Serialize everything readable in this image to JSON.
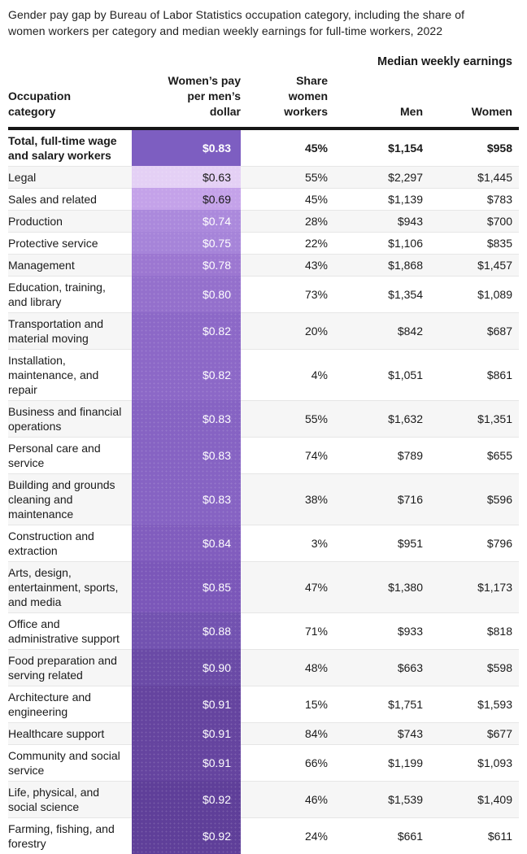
{
  "title": "Gender pay gap by Bureau of Labor Statistics occupation category, including the share of women workers per category and median weekly earnings for full-time workers, 2022",
  "chart_data": {
    "type": "table",
    "title": "Gender pay gap by Bureau of Labor Statistics occupation category, including the share of women workers per category and median weekly earnings for full-time workers, 2022",
    "group_header": "Median weekly earnings",
    "columns": [
      "Occupation category",
      "Women’s pay per men’s dollar",
      "Share women workers",
      "Men",
      "Women"
    ],
    "heatmap_legend": "Purple shading of the pay-ratio column darkens as women's pay per men's dollar increases, from $0.63 (lightest) to $0.92 (darkest)",
    "rows": [
      {
        "category": "Total, full-time wage and salary workers",
        "pay_label": "$0.83",
        "pay_value": 0.83,
        "share_label": "45%",
        "share_value": 45,
        "men_label": "$1,154",
        "men_value": 1154,
        "women_label": "$958",
        "women_value": 958,
        "cell_bg": "#7D5EC1",
        "cell_text": "#FFFFFF",
        "bold": true
      },
      {
        "category": "Legal",
        "pay_label": "$0.63",
        "pay_value": 0.63,
        "share_label": "55%",
        "share_value": 55,
        "men_label": "$2,297",
        "men_value": 2297,
        "women_label": "$1,445",
        "women_value": 1445,
        "cell_bg": "#E4D0F5",
        "cell_text": "#1A1A1A",
        "bold": false
      },
      {
        "category": "Sales and related",
        "pay_label": "$0.69",
        "pay_value": 0.69,
        "share_label": "45%",
        "share_value": 45,
        "men_label": "$1,139",
        "men_value": 1139,
        "women_label": "$783",
        "women_value": 783,
        "cell_bg": "#C4A2E9",
        "cell_text": "#1A1A1A",
        "bold": false
      },
      {
        "category": "Production",
        "pay_label": "$0.74",
        "pay_value": 0.74,
        "share_label": "28%",
        "share_value": 28,
        "men_label": "$943",
        "men_value": 943,
        "women_label": "$700",
        "women_value": 700,
        "cell_bg": "#AB89DC",
        "cell_text": "#FFFFFF",
        "bold": false
      },
      {
        "category": "Protective service",
        "pay_label": "$0.75",
        "pay_value": 0.75,
        "share_label": "22%",
        "share_value": 22,
        "men_label": "$1,106",
        "men_value": 1106,
        "women_label": "$835",
        "women_value": 835,
        "cell_bg": "#A684D9",
        "cell_text": "#FFFFFF",
        "bold": false
      },
      {
        "category": "Management",
        "pay_label": "$0.78",
        "pay_value": 0.78,
        "share_label": "43%",
        "share_value": 43,
        "men_label": "$1,868",
        "men_value": 1868,
        "women_label": "$1,457",
        "women_value": 1457,
        "cell_bg": "#9C77D1",
        "cell_text": "#FFFFFF",
        "bold": false
      },
      {
        "category": "Education, training, and library",
        "pay_label": "$0.80",
        "pay_value": 0.8,
        "share_label": "73%",
        "share_value": 73,
        "men_label": "$1,354",
        "men_value": 1354,
        "women_label": "$1,089",
        "women_value": 1089,
        "cell_bg": "#9470CC",
        "cell_text": "#FFFFFF",
        "bold": false
      },
      {
        "category": "Transportation and material moving",
        "pay_label": "$0.82",
        "pay_value": 0.82,
        "share_label": "20%",
        "share_value": 20,
        "men_label": "$842",
        "men_value": 842,
        "women_label": "$687",
        "women_value": 687,
        "cell_bg": "#8C68C7",
        "cell_text": "#FFFFFF",
        "bold": false
      },
      {
        "category": "Installation, maintenance, and repair",
        "pay_label": "$0.82",
        "pay_value": 0.82,
        "share_label": "4%",
        "share_value": 4,
        "men_label": "$1,051",
        "men_value": 1051,
        "women_label": "$861",
        "women_value": 861,
        "cell_bg": "#8C68C7",
        "cell_text": "#FFFFFF",
        "bold": false
      },
      {
        "category": "Business and financial operations",
        "pay_label": "$0.83",
        "pay_value": 0.83,
        "share_label": "55%",
        "share_value": 55,
        "men_label": "$1,632",
        "men_value": 1632,
        "women_label": "$1,351",
        "women_value": 1351,
        "cell_bg": "#8663C3",
        "cell_text": "#FFFFFF",
        "bold": false
      },
      {
        "category": "Personal care and service",
        "pay_label": "$0.83",
        "pay_value": 0.83,
        "share_label": "74%",
        "share_value": 74,
        "men_label": "$789",
        "men_value": 789,
        "women_label": "$655",
        "women_value": 655,
        "cell_bg": "#8663C3",
        "cell_text": "#FFFFFF",
        "bold": false
      },
      {
        "category": "Building and grounds cleaning and maintenance",
        "pay_label": "$0.83",
        "pay_value": 0.83,
        "share_label": "38%",
        "share_value": 38,
        "men_label": "$716",
        "men_value": 716,
        "women_label": "$596",
        "women_value": 596,
        "cell_bg": "#8663C3",
        "cell_text": "#FFFFFF",
        "bold": false
      },
      {
        "category": "Construction and extraction",
        "pay_label": "$0.84",
        "pay_value": 0.84,
        "share_label": "3%",
        "share_value": 3,
        "men_label": "$951",
        "men_value": 951,
        "women_label": "$796",
        "women_value": 796,
        "cell_bg": "#815DBE",
        "cell_text": "#FFFFFF",
        "bold": false
      },
      {
        "category": "Arts, design, entertainment, sports, and media",
        "pay_label": "$0.85",
        "pay_value": 0.85,
        "share_label": "47%",
        "share_value": 47,
        "men_label": "$1,380",
        "men_value": 1380,
        "women_label": "$1,173",
        "women_value": 1173,
        "cell_bg": "#7B57B9",
        "cell_text": "#FFFFFF",
        "bold": false
      },
      {
        "category": "Office and administrative support",
        "pay_label": "$0.88",
        "pay_value": 0.88,
        "share_label": "71%",
        "share_value": 71,
        "men_label": "$933",
        "men_value": 933,
        "women_label": "$818",
        "women_value": 818,
        "cell_bg": "#7252B0",
        "cell_text": "#FFFFFF",
        "bold": false
      },
      {
        "category": "Food preparation and serving related",
        "pay_label": "$0.90",
        "pay_value": 0.9,
        "share_label": "48%",
        "share_value": 48,
        "men_label": "$663",
        "men_value": 663,
        "women_label": "$598",
        "women_value": 598,
        "cell_bg": "#6A4AA6",
        "cell_text": "#FFFFFF",
        "bold": false
      },
      {
        "category": "Architecture and engineering",
        "pay_label": "$0.91",
        "pay_value": 0.91,
        "share_label": "15%",
        "share_value": 15,
        "men_label": "$1,751",
        "men_value": 1751,
        "women_label": "$1,593",
        "women_value": 1593,
        "cell_bg": "#65449F",
        "cell_text": "#FFFFFF",
        "bold": false
      },
      {
        "category": "Healthcare support",
        "pay_label": "$0.91",
        "pay_value": 0.91,
        "share_label": "84%",
        "share_value": 84,
        "men_label": "$743",
        "men_value": 743,
        "women_label": "$677",
        "women_value": 677,
        "cell_bg": "#65449F",
        "cell_text": "#FFFFFF",
        "bold": false
      },
      {
        "category": "Community and social service",
        "pay_label": "$0.91",
        "pay_value": 0.91,
        "share_label": "66%",
        "share_value": 66,
        "men_label": "$1,199",
        "men_value": 1199,
        "women_label": "$1,093",
        "women_value": 1093,
        "cell_bg": "#65449F",
        "cell_text": "#FFFFFF",
        "bold": false
      },
      {
        "category": "Life, physical, and social science",
        "pay_label": "$0.92",
        "pay_value": 0.92,
        "share_label": "46%",
        "share_value": 46,
        "men_label": "$1,539",
        "men_value": 1539,
        "women_label": "$1,409",
        "women_value": 1409,
        "cell_bg": "#5F3F99",
        "cell_text": "#FFFFFF",
        "bold": false
      },
      {
        "category": "Farming, fishing, and forestry",
        "pay_label": "$0.92",
        "pay_value": 0.92,
        "share_label": "24%",
        "share_value": 24,
        "men_label": "$661",
        "men_value": 661,
        "women_label": "$611",
        "women_value": 611,
        "cell_bg": "#5F3F99",
        "cell_text": "#FFFFFF",
        "bold": false
      }
    ]
  }
}
